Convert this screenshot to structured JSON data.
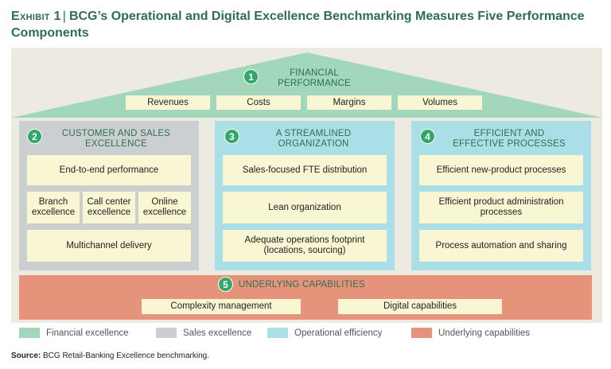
{
  "title": {
    "exhibit": "Exhibit 1",
    "text": "BCG’s Operational and Digital Excellence Benchmarking Measures Five Performance Components"
  },
  "roof": {
    "number": "1",
    "title_line1": "Financial",
    "title_line2": "performance",
    "items": [
      "Revenues",
      "Costs",
      "Margins",
      "Volumes"
    ]
  },
  "customer": {
    "number": "2",
    "title_line1": "Customer and sales",
    "title_line2": "excellence",
    "top": "End-to-end performance",
    "mid": [
      {
        "line1": "Branch",
        "line2": "excellence"
      },
      {
        "line1": "Call center",
        "line2": "excellence"
      },
      {
        "line1": "Online",
        "line2": "excellence"
      }
    ],
    "bottom": "Multichannel delivery"
  },
  "organization": {
    "number": "3",
    "title_line1": "A streamlined",
    "title_line2": "organization",
    "items": [
      {
        "line1": "Sales-focused FTE distribution",
        "line2": ""
      },
      {
        "line1": "Lean organization",
        "line2": ""
      },
      {
        "line1": "Adequate operations footprint",
        "line2": "(locations, sourcing)"
      }
    ]
  },
  "processes": {
    "number": "4",
    "title_line1": "Efficient and",
    "title_line2": "effective processes",
    "items": [
      {
        "line1": "Efficient new-product processes",
        "line2": ""
      },
      {
        "line1": "Efficient product administration",
        "line2": "processes"
      },
      {
        "line1": "Process automation and sharing",
        "line2": ""
      }
    ]
  },
  "capabilities": {
    "number": "5",
    "title": "Underlying capabilities",
    "items": [
      "Complexity management",
      "Digital capabilities"
    ]
  },
  "legend": [
    {
      "label": "Financial excellence",
      "color": "#a3d7bb"
    },
    {
      "label": "Sales excellence",
      "color": "#cbcfd2"
    },
    {
      "label": "Operational efficiency",
      "color": "#abdfe8"
    },
    {
      "label": "Underlying capabilities",
      "color": "#e5947b"
    }
  ],
  "source": {
    "label": "Source:",
    "text": "BCG Retail-Banking Excellence benchmarking."
  },
  "colors": {
    "accent_green": "#31a86a",
    "title_green": "#2f6e4f",
    "item_box": "#f9f6d4",
    "roof": "#a3d7bb",
    "sales_gray": "#cbcfd2",
    "operational_blue": "#abdfe8",
    "capabilities_orange": "#e5947b"
  }
}
